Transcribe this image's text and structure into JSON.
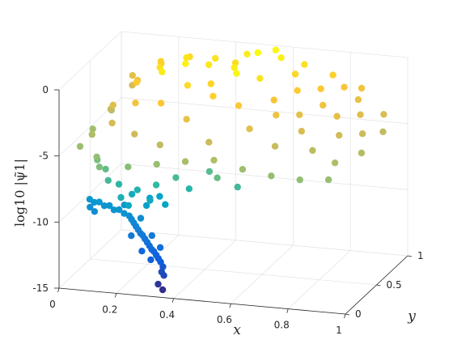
{
  "chart_data": {
    "type": "scatter",
    "projection": "3d",
    "title": "",
    "xlabel": "x",
    "ylabel": "y",
    "zlabel": "log10 |ψ̃1|",
    "x_ticks": [
      "0",
      "0.2",
      "0.4",
      "0.6",
      "0.8",
      "1"
    ],
    "y_ticks": [
      "0",
      "0.5",
      "1"
    ],
    "z_ticks": [
      "0",
      "-5",
      "-10",
      "-15"
    ],
    "xlim": [
      0,
      1
    ],
    "ylim": [
      0,
      1
    ],
    "zlim": [
      -15,
      0
    ],
    "grid": true,
    "colormap": "parula",
    "colormap_colors": [
      "#352a87",
      "#0f5cdd",
      "#1481d6",
      "#06a4ca",
      "#2eb7a4",
      "#87bf77",
      "#d1bb59",
      "#fec832",
      "#f9fb0e"
    ],
    "series": [
      {
        "points": [
          [
            0.02,
            0.75,
            -4.8
          ],
          [
            0.02,
            0.45,
            -4.9
          ],
          [
            0.03,
            0.2,
            -5.1
          ],
          [
            0.05,
            0.6,
            -4.0
          ],
          [
            0.05,
            0.3,
            -4.6
          ],
          [
            0.06,
            0.9,
            -3.5
          ],
          [
            0.08,
            0.5,
            -3.2
          ],
          [
            0.1,
            0.8,
            -2.6
          ],
          [
            0.12,
            0.3,
            -3.6
          ],
          [
            0.14,
            0.6,
            -1.8
          ],
          [
            0.16,
            0.9,
            -1.5
          ],
          [
            0.18,
            0.4,
            -2.4
          ],
          [
            0.2,
            0.7,
            -1.0
          ],
          [
            0.22,
            0.2,
            -3.8
          ],
          [
            0.24,
            0.55,
            -0.6
          ],
          [
            0.26,
            0.85,
            -0.8
          ],
          [
            0.28,
            0.35,
            -2.0
          ],
          [
            0.3,
            0.65,
            -0.3
          ],
          [
            0.32,
            0.15,
            -4.2
          ],
          [
            0.34,
            0.5,
            -1.2
          ],
          [
            0.36,
            0.75,
            -0.7
          ],
          [
            0.38,
            0.3,
            -2.8
          ],
          [
            0.4,
            0.6,
            -1.4
          ],
          [
            0.42,
            0.9,
            -1.1
          ],
          [
            0.44,
            0.45,
            -1.6
          ],
          [
            0.46,
            0.7,
            -0.5
          ],
          [
            0.48,
            0.2,
            -3.9
          ],
          [
            0.5,
            0.55,
            -0.2
          ],
          [
            0.52,
            0.8,
            0.3
          ],
          [
            0.54,
            0.4,
            -1.9
          ],
          [
            0.56,
            0.65,
            -0.9
          ],
          [
            0.58,
            0.9,
            -0.4
          ],
          [
            0.6,
            0.3,
            -3.1
          ],
          [
            0.62,
            0.6,
            -2.2
          ],
          [
            0.64,
            0.85,
            -1.3
          ],
          [
            0.66,
            0.45,
            -2.6
          ],
          [
            0.68,
            0.7,
            -1.8
          ],
          [
            0.7,
            0.25,
            -4.0
          ],
          [
            0.72,
            0.55,
            -2.9
          ],
          [
            0.74,
            0.8,
            -2.0
          ],
          [
            0.76,
            0.4,
            -3.4
          ],
          [
            0.78,
            0.65,
            -2.5
          ],
          [
            0.8,
            0.9,
            -2.2
          ],
          [
            0.82,
            0.3,
            -4.3
          ],
          [
            0.84,
            0.6,
            -3.0
          ],
          [
            0.86,
            0.85,
            -2.8
          ],
          [
            0.88,
            0.45,
            -3.7
          ],
          [
            0.9,
            0.7,
            -3.2
          ],
          [
            0.92,
            0.2,
            -4.6
          ],
          [
            0.94,
            0.55,
            -3.9
          ],
          [
            0.96,
            0.8,
            -3.5
          ],
          [
            0.98,
            0.35,
            -4.4
          ],
          [
            0.99,
            0.65,
            -4.1
          ],
          [
            0.35,
            0.9,
            -0.9
          ],
          [
            0.45,
            0.95,
            -0.6
          ],
          [
            0.55,
            0.95,
            -0.1
          ],
          [
            0.65,
            0.95,
            -1.0
          ],
          [
            0.75,
            0.95,
            -1.6
          ],
          [
            0.85,
            0.95,
            -2.4
          ],
          [
            0.25,
            0.95,
            -1.2
          ],
          [
            0.15,
            0.95,
            -1.9
          ],
          [
            0.05,
            0.95,
            -3.0
          ],
          [
            0.33,
            0.05,
            -5.2
          ],
          [
            0.43,
            0.05,
            -4.8
          ],
          [
            0.53,
            0.05,
            -4.5
          ],
          [
            0.63,
            0.05,
            -5.0
          ],
          [
            0.73,
            0.05,
            -5.3
          ],
          [
            0.83,
            0.05,
            -5.4
          ],
          [
            0.93,
            0.05,
            -5.2
          ],
          [
            0.23,
            0.05,
            -5.6
          ],
          [
            0.13,
            0.05,
            -5.8
          ],
          [
            0.11,
            0.1,
            -5.3
          ],
          [
            0.09,
            0.2,
            -6.0
          ],
          [
            0.13,
            0.15,
            -6.4
          ],
          [
            0.15,
            0.1,
            -7.0
          ],
          [
            0.17,
            0.18,
            -7.6
          ],
          [
            0.19,
            0.12,
            -8.3
          ],
          [
            0.21,
            0.15,
            -9.0
          ],
          [
            0.2,
            0.25,
            -8.6
          ],
          [
            0.23,
            0.2,
            -8.0
          ],
          [
            0.27,
            0.22,
            -8.8
          ],
          [
            0.3,
            0.18,
            -7.4
          ],
          [
            0.36,
            0.22,
            -6.9
          ],
          [
            0.4,
            0.25,
            -7.8
          ],
          [
            0.46,
            0.3,
            -6.6
          ],
          [
            0.52,
            0.15,
            -6.3
          ],
          [
            0.58,
            0.2,
            -7.1
          ],
          [
            0.31,
            0.28,
            -9.3
          ],
          [
            0.24,
            0.3,
            -9.6
          ],
          [
            0.02,
            0.4,
            -10.0
          ],
          [
            0.04,
            0.38,
            -10.1
          ],
          [
            0.06,
            0.37,
            -10.0
          ],
          [
            0.08,
            0.36,
            -10.2
          ],
          [
            0.1,
            0.35,
            -10.1
          ],
          [
            0.12,
            0.33,
            -10.3
          ],
          [
            0.14,
            0.32,
            -10.2
          ],
          [
            0.16,
            0.31,
            -10.4
          ],
          [
            0.18,
            0.3,
            -10.5
          ],
          [
            0.19,
            0.29,
            -10.7
          ],
          [
            0.2,
            0.28,
            -10.9
          ],
          [
            0.21,
            0.27,
            -11.1
          ],
          [
            0.22,
            0.26,
            -11.3
          ],
          [
            0.23,
            0.25,
            -11.5
          ],
          [
            0.24,
            0.24,
            -11.6
          ],
          [
            0.25,
            0.23,
            -11.8
          ],
          [
            0.26,
            0.22,
            -12.0
          ],
          [
            0.27,
            0.21,
            -12.2
          ],
          [
            0.28,
            0.2,
            -12.4
          ],
          [
            0.29,
            0.19,
            -12.5
          ],
          [
            0.3,
            0.18,
            -12.7
          ],
          [
            0.31,
            0.17,
            -12.9
          ],
          [
            0.32,
            0.16,
            -13.1
          ],
          [
            0.33,
            0.15,
            -13.4
          ],
          [
            0.33,
            0.13,
            -13.7
          ],
          [
            0.34,
            0.12,
            -13.9
          ],
          [
            0.03,
            0.36,
            -10.4
          ],
          [
            0.05,
            0.34,
            -10.6
          ],
          [
            0.15,
            0.36,
            -10.0
          ],
          [
            0.22,
            0.3,
            -10.6
          ],
          [
            0.27,
            0.25,
            -11.6
          ],
          [
            0.31,
            0.2,
            -12.2
          ],
          [
            0.29,
            0.14,
            -12.9
          ],
          [
            0.25,
            0.18,
            -12.5
          ],
          [
            0.2,
            0.24,
            -11.7
          ],
          [
            0.23,
            0.4,
            -9.5
          ],
          [
            0.26,
            0.42,
            -9.4
          ],
          [
            0.32,
            0.12,
            -14.6
          ],
          [
            0.34,
            0.1,
            -14.9
          ]
        ]
      }
    ]
  }
}
